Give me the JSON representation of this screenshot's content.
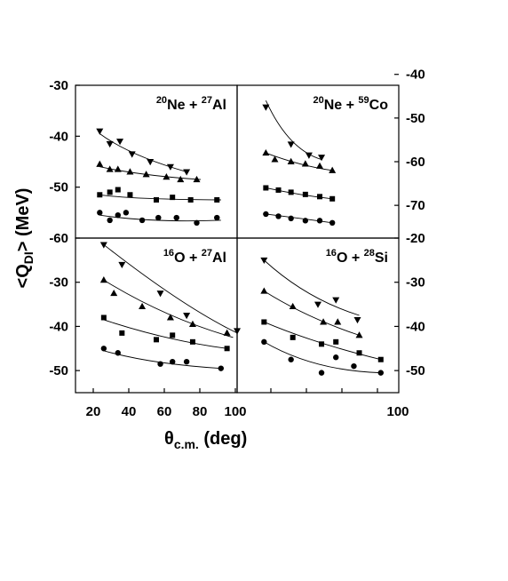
{
  "xlabel": {
    "main": "θ",
    "sub": "c.m.",
    "rest": " (deg)"
  },
  "ylabel": {
    "pre": "<Q",
    "sub": "DI",
    "post": "> (MeV)"
  },
  "x_tick_labels": [
    "20",
    "40",
    "60",
    "80",
    "100"
  ],
  "chart_data": [
    {
      "type": "scatter",
      "panel": "top-left",
      "title": {
        "a_mass": "20",
        "a_el": "Ne",
        "plus": " + ",
        "b_mass": "27",
        "b_el": "Al"
      },
      "xlim": [
        10,
        90
      ],
      "ylim": [
        -60,
        -30
      ],
      "yticks": [
        -30,
        -40,
        -50,
        -60
      ],
      "ytick_side": "left",
      "series": [
        {
          "marker": "triangle-down",
          "x": [
            22,
            27,
            32,
            38,
            47,
            57,
            65
          ],
          "y": [
            -39,
            -41.5,
            -41,
            -43.5,
            -45,
            -46,
            -47
          ],
          "fit": [
            [
              22,
              -39.5
            ],
            [
              40,
              -43.5
            ],
            [
              65,
              -47
            ]
          ]
        },
        {
          "marker": "triangle-up",
          "x": [
            22,
            27,
            31,
            37,
            45,
            55,
            62,
            70
          ],
          "y": [
            -45.5,
            -46.5,
            -46.5,
            -47,
            -47.5,
            -48,
            -48.5,
            -48.5
          ],
          "fit": [
            [
              22,
              -46
            ],
            [
              45,
              -47.5
            ],
            [
              72,
              -48.5
            ]
          ]
        },
        {
          "marker": "square",
          "x": [
            22,
            27,
            31,
            37,
            50,
            58,
            67,
            80
          ],
          "y": [
            -51.5,
            -51,
            -50.5,
            -51.5,
            -52.5,
            -52,
            -52.5,
            -52.5
          ],
          "fit": [
            [
              22,
              -51.5
            ],
            [
              45,
              -52.2
            ],
            [
              82,
              -52.5
            ]
          ]
        },
        {
          "marker": "circle",
          "x": [
            22,
            27,
            31,
            35,
            43,
            51,
            60,
            70,
            80
          ],
          "y": [
            -55,
            -56.5,
            -55.5,
            -55,
            -56.5,
            -56,
            -56,
            -57,
            -56
          ],
          "fit": [
            [
              22,
              -55.5
            ],
            [
              50,
              -56.5
            ],
            [
              82,
              -56.5
            ]
          ]
        }
      ]
    },
    {
      "type": "scatter",
      "panel": "top-right",
      "title": {
        "a_mass": "20",
        "a_el": "Ne",
        "plus": " + ",
        "b_mass": "59",
        "b_el": "Co"
      },
      "xlim": [
        10,
        100
      ],
      "ylim": [
        -77.5,
        -42.5
      ],
      "yticks": [
        -40,
        -50,
        -60,
        -70
      ],
      "ytick_side": "right",
      "series": [
        {
          "marker": "triangle-down",
          "x": [
            26,
            40,
            50,
            57
          ],
          "y": [
            -47.5,
            -56,
            -58.5,
            -59
          ],
          "fit": [
            [
              26,
              -46
            ],
            [
              40,
              -55
            ],
            [
              57,
              -59.5
            ]
          ]
        },
        {
          "marker": "triangle-up",
          "x": [
            26,
            31,
            40,
            48,
            56,
            63
          ],
          "y": [
            -58,
            -59.5,
            -60,
            -60.5,
            -61,
            -62
          ],
          "fit": [
            [
              26,
              -58
            ],
            [
              45,
              -60.5
            ],
            [
              63,
              -62
            ]
          ]
        },
        {
          "marker": "square",
          "x": [
            26,
            33,
            40,
            48,
            56,
            63
          ],
          "y": [
            -66,
            -66.5,
            -67,
            -67.5,
            -68,
            -68.5
          ],
          "fit": [
            [
              26,
              -66
            ],
            [
              45,
              -67.5
            ],
            [
              63,
              -68.5
            ]
          ]
        },
        {
          "marker": "circle",
          "x": [
            26,
            33,
            40,
            48,
            56,
            63
          ],
          "y": [
            -72,
            -72.5,
            -73,
            -73.5,
            -73.5,
            -74
          ],
          "fit": [
            [
              26,
              -72
            ],
            [
              45,
              -73
            ],
            [
              63,
              -74
            ]
          ]
        }
      ]
    },
    {
      "type": "scatter",
      "panel": "bottom-left",
      "title": {
        "a_mass": "16",
        "a_el": "O",
        "plus": " + ",
        "b_mass": "27",
        "b_el": "Al"
      },
      "xlim": [
        10,
        90
      ],
      "ylim": [
        -55,
        -20
      ],
      "yticks": [
        -30,
        -40,
        -50
      ],
      "ytick_side": "left",
      "series": [
        {
          "marker": "triangle-down",
          "x": [
            24,
            33,
            52,
            65,
            90
          ],
          "y": [
            -21.5,
            -26,
            -32.5,
            -37.5,
            -41
          ],
          "fit": [
            [
              24,
              -21.5
            ],
            [
              60,
              -33.5
            ],
            [
              90,
              -41.5
            ]
          ]
        },
        {
          "marker": "triangle-up",
          "x": [
            24,
            29,
            43,
            57,
            68,
            85
          ],
          "y": [
            -29.5,
            -32.5,
            -35.5,
            -38,
            -39.5,
            -41.5
          ],
          "fit": [
            [
              24,
              -29.5
            ],
            [
              55,
              -37
            ],
            [
              88,
              -42.5
            ]
          ]
        },
        {
          "marker": "square",
          "x": [
            24,
            33,
            50,
            58,
            68,
            85
          ],
          "y": [
            -38,
            -41.5,
            -43,
            -42,
            -43.5,
            -45
          ],
          "fit": [
            [
              24,
              -38.5
            ],
            [
              55,
              -42.5
            ],
            [
              85,
              -45
            ]
          ]
        },
        {
          "marker": "circle",
          "x": [
            24,
            31,
            52,
            58,
            65,
            82
          ],
          "y": [
            -45,
            -46,
            -48.5,
            -48,
            -48,
            -49.5
          ],
          "fit": [
            [
              24,
              -45.5
            ],
            [
              50,
              -48
            ],
            [
              82,
              -49.5
            ]
          ]
        }
      ]
    },
    {
      "type": "scatter",
      "panel": "bottom-right",
      "title": {
        "a_mass": "16",
        "a_el": "O",
        "plus": " + ",
        "b_mass": "28",
        "b_el": "Si"
      },
      "xlim": [
        10,
        100
      ],
      "ylim": [
        -55,
        -20
      ],
      "yticks": [
        -20,
        -30,
        -40,
        -50
      ],
      "ytick_side": "right",
      "series": [
        {
          "marker": "triangle-down",
          "x": [
            25,
            55,
            65,
            77
          ],
          "y": [
            -25,
            -35,
            -34,
            -38.5
          ],
          "fit": [
            [
              25,
              -25
            ],
            [
              50,
              -32.5
            ],
            [
              78,
              -37.5
            ]
          ]
        },
        {
          "marker": "triangle-up",
          "x": [
            25,
            41,
            58,
            66,
            78
          ],
          "y": [
            -32,
            -35.5,
            -39,
            -39,
            -42
          ],
          "fit": [
            [
              25,
              -32
            ],
            [
              50,
              -37.5
            ],
            [
              78,
              -42
            ]
          ]
        },
        {
          "marker": "square",
          "x": [
            25,
            41,
            57,
            65,
            78,
            90
          ],
          "y": [
            -39,
            -42.5,
            -44,
            -43.5,
            -46,
            -47.5
          ],
          "fit": [
            [
              25,
              -39
            ],
            [
              55,
              -43.5
            ],
            [
              90,
              -47.5
            ]
          ]
        },
        {
          "marker": "circle",
          "x": [
            25,
            40,
            57,
            65,
            75,
            90
          ],
          "y": [
            -43.5,
            -47.5,
            -50.5,
            -47,
            -49,
            -50.5
          ],
          "fit": [
            [
              25,
              -43.5
            ],
            [
              55,
              -48.5
            ],
            [
              90,
              -50.5
            ]
          ]
        }
      ]
    }
  ]
}
